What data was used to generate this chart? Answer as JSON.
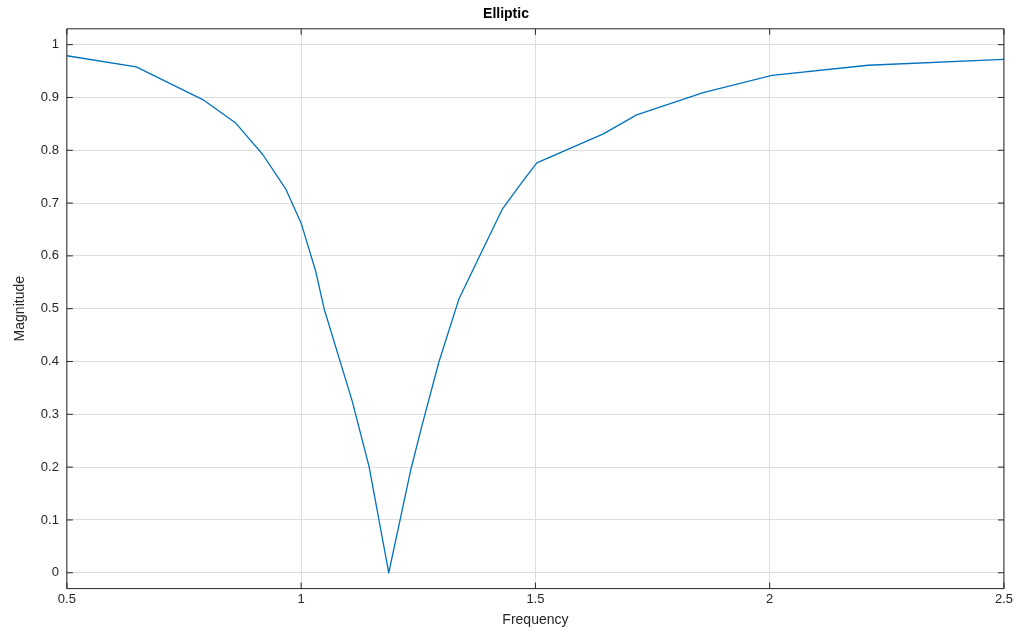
{
  "chart_data": {
    "type": "line",
    "title": "Elliptic",
    "xlabel": "Frequency",
    "ylabel": "Magnitude",
    "x": [
      0.5,
      0.648,
      0.79,
      0.861,
      0.918,
      0.967,
      1.0,
      1.031,
      1.049,
      1.109,
      1.145,
      1.187,
      1.234,
      1.258,
      1.294,
      1.337,
      1.429,
      1.472,
      1.503,
      1.645,
      1.716,
      1.858,
      2.005,
      2.21,
      2.5
    ],
    "series": [
      {
        "color": "#0072bd",
        "values": [
          0.979,
          0.958,
          0.896,
          0.851,
          0.792,
          0.727,
          0.662,
          0.571,
          0.5,
          0.325,
          0.201,
          0,
          0.195,
          0.279,
          0.399,
          0.519,
          0.688,
          0.74,
          0.776,
          0.831,
          0.867,
          0.909,
          0.942,
          0.961,
          0.972
        ]
      }
    ],
    "xlim": [
      0.5,
      2.5
    ],
    "xticks": [
      0.5,
      1,
      1.5,
      2,
      2.5
    ],
    "ylim": [
      -0.03,
      1.03
    ],
    "yticks": [
      0,
      0.1,
      0.2,
      0.3,
      0.4,
      0.5,
      0.6,
      0.7,
      0.8,
      0.9,
      1
    ],
    "grid": true,
    "legend": false,
    "marker": "none",
    "line_style": "solid"
  }
}
